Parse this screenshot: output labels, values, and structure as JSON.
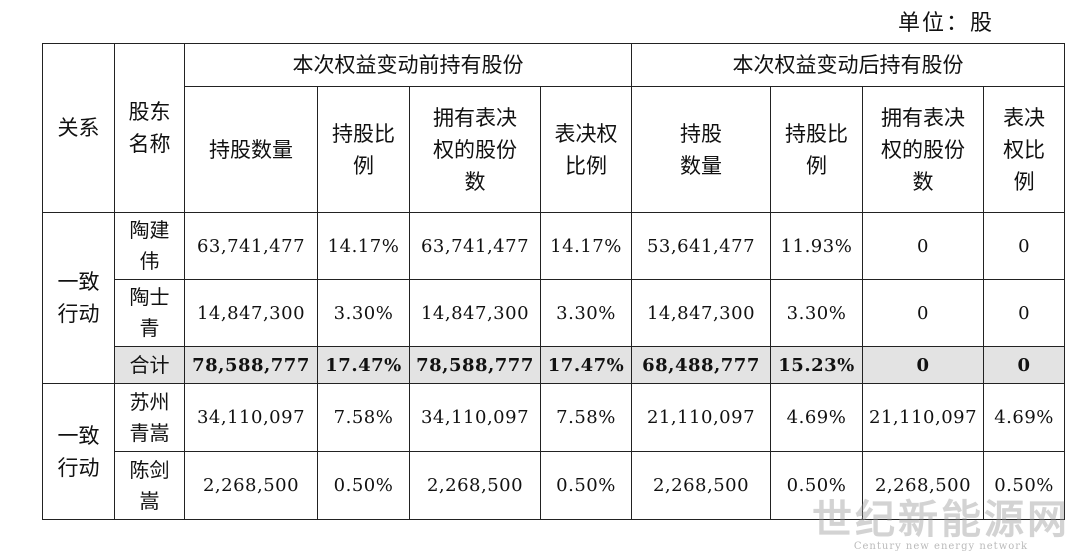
{
  "unit_label": "单位：股",
  "headers": {
    "relation": "关系",
    "holder_name": "股东\n名称",
    "before_group": "本次权益变动前持有股份",
    "after_group": "本次权益变动后持有股份",
    "before_cols": [
      "持股数量",
      "持股比\n例",
      "拥有表决\n权的股份\n数",
      "表决权\n比例"
    ],
    "after_cols": [
      "持股\n数量",
      "持股比\n例",
      "拥有表决\n权的股份\n数",
      "表决\n权比\n例"
    ]
  },
  "groups": [
    {
      "relation": "一致\n行动",
      "rows": [
        {
          "name": "陶建\n伟",
          "cells": [
            "63,741,477",
            "14.17%",
            "63,741,477",
            "14.17%",
            "53,641,477",
            "11.93%",
            "0",
            "0"
          ]
        },
        {
          "name": "陶士\n青",
          "cells": [
            "14,847,300",
            "3.30%",
            "14,847,300",
            "3.30%",
            "14,847,300",
            "3.30%",
            "0",
            "0"
          ]
        },
        {
          "name": "合计",
          "cells": [
            "78,588,777",
            "17.47%",
            "78,588,777",
            "17.47%",
            "68,488,777",
            "15.23%",
            "0",
            "0"
          ]
        }
      ]
    },
    {
      "relation": "一致\n行动",
      "rows": [
        {
          "name": "苏州\n青嵩",
          "cells": [
            "34,110,097",
            "7.58%",
            "34,110,097",
            "7.58%",
            "21,110,097",
            "4.69%",
            "21,110,097",
            "4.69%"
          ]
        },
        {
          "name": "陈剑\n嵩",
          "cells": [
            "2,268,500",
            "0.50%",
            "2,268,500",
            "0.50%",
            "2,268,500",
            "0.50%",
            "2,268,500",
            "0.50%"
          ]
        }
      ]
    }
  ],
  "watermark": {
    "main": "世纪新能源网",
    "sub": "Century new energy network"
  }
}
